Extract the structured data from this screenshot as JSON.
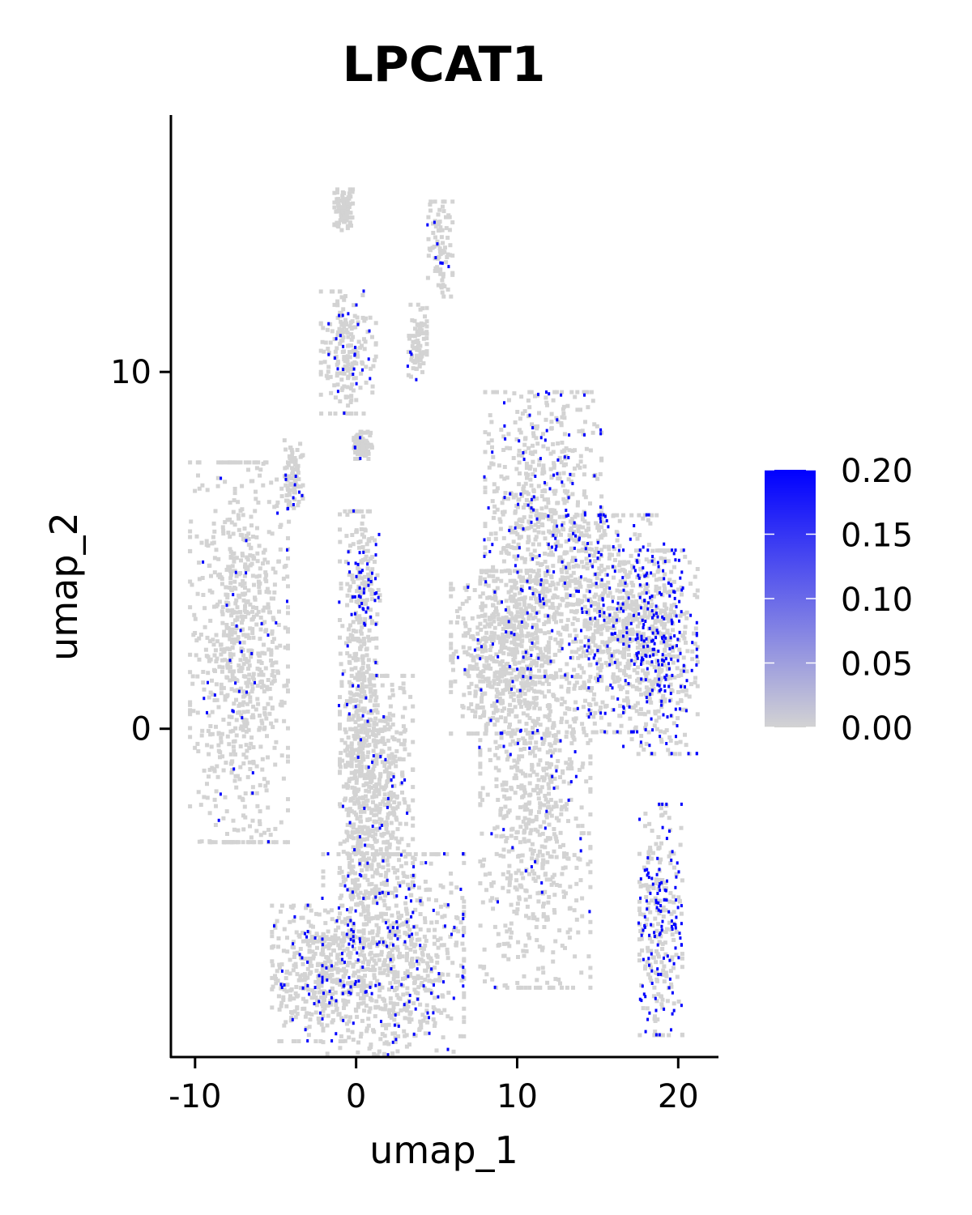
{
  "chart_data": {
    "type": "scatter",
    "title": "LPCAT1",
    "xlabel": "umap_1",
    "ylabel": "umap_2",
    "xlim": [
      -11.5,
      22.5
    ],
    "ylim": [
      -9.2,
      17.2
    ],
    "x_ticks": [
      -10,
      0,
      10,
      20
    ],
    "x_tick_labels": [
      "-10",
      "0",
      "10",
      "20"
    ],
    "y_ticks": [
      0,
      10
    ],
    "y_tick_labels": [
      "0",
      "10"
    ],
    "grid": false,
    "legend": {
      "position": "right",
      "type": "colorbar",
      "min": 0.0,
      "max": 0.2,
      "ticks": [
        "0.00",
        "0.05",
        "0.10",
        "0.15",
        "0.20"
      ],
      "low_color": "#d3d3d3",
      "high_color": "#0000ff"
    },
    "clusters": [
      {
        "name": "",
        "center": [
          -7.4,
          2.2
        ],
        "spread": [
          1.6,
          2.8
        ],
        "expr_fraction": 0.04
      },
      {
        "name": "",
        "center": [
          -0.6,
          10.6
        ],
        "spread": [
          0.9,
          0.9
        ],
        "expr_fraction": 0.08
      },
      {
        "name": "",
        "center": [
          -0.9,
          14.6
        ],
        "spread": [
          0.3,
          0.3
        ],
        "expr_fraction": 0.0
      },
      {
        "name": "",
        "center": [
          5.1,
          13.5
        ],
        "spread": [
          0.4,
          0.7
        ],
        "expr_fraction": 0.1
      },
      {
        "name": "",
        "center": [
          3.7,
          10.8
        ],
        "spread": [
          0.3,
          0.6
        ],
        "expr_fraction": 0.05
      },
      {
        "name": "",
        "center": [
          0.3,
          8.0
        ],
        "spread": [
          0.3,
          0.2
        ],
        "expr_fraction": 0.05
      },
      {
        "name": "",
        "center": [
          -4.0,
          7.0
        ],
        "spread": [
          0.3,
          0.6
        ],
        "expr_fraction": 0.15
      },
      {
        "name": "",
        "center": [
          0.4,
          4.1
        ],
        "spread": [
          0.5,
          0.8
        ],
        "expr_fraction": 0.4
      },
      {
        "name": "",
        "center": [
          0.0,
          -0.5
        ],
        "spread": [
          0.6,
          3.5
        ],
        "expr_fraction": 0.06
      },
      {
        "name": "",
        "center": [
          1.5,
          -1.5
        ],
        "spread": [
          1.0,
          1.6
        ],
        "expr_fraction": 0.05
      },
      {
        "name": "",
        "center": [
          2.2,
          -6.5
        ],
        "spread": [
          2.3,
          1.6
        ],
        "expr_fraction": 0.14
      },
      {
        "name": "",
        "center": [
          -2.5,
          -6.8
        ],
        "spread": [
          1.5,
          1.0
        ],
        "expr_fraction": 0.12
      },
      {
        "name": "",
        "center": [
          11.0,
          -1.5
        ],
        "spread": [
          1.8,
          3.0
        ],
        "expr_fraction": 0.05
      },
      {
        "name": "",
        "center": [
          8.8,
          2.2
        ],
        "spread": [
          1.6,
          1.2
        ],
        "expr_fraction": 0.04
      },
      {
        "name": "",
        "center": [
          11.5,
          5.5
        ],
        "spread": [
          1.9,
          2.1
        ],
        "expr_fraction": 0.14
      },
      {
        "name": "",
        "center": [
          16.0,
          3.0
        ],
        "spread": [
          1.6,
          1.6
        ],
        "expr_fraction": 0.2
      },
      {
        "name": "",
        "center": [
          18.8,
          2.2
        ],
        "spread": [
          1.2,
          1.5
        ],
        "expr_fraction": 0.32
      },
      {
        "name": "",
        "center": [
          18.8,
          -5.3
        ],
        "spread": [
          0.7,
          1.7
        ],
        "expr_fraction": 0.35
      }
    ]
  }
}
